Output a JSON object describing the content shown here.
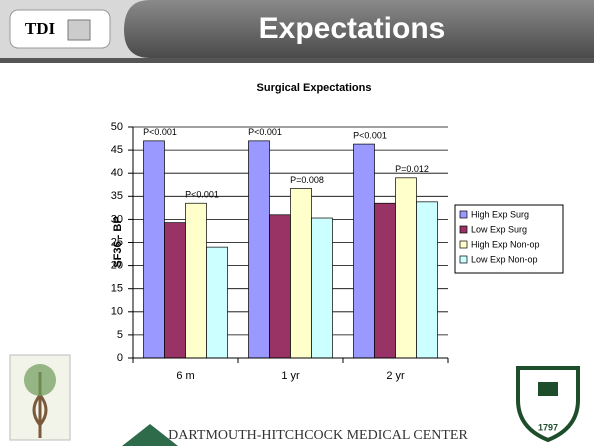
{
  "header": {
    "logo": "TDI",
    "title": "Expectations"
  },
  "footer": {
    "text": "DARTMOUTH-HITCHCOCK MEDICAL CENTER",
    "seal_year": "1797"
  },
  "chart_data": {
    "type": "bar",
    "title": "Surgical  Expectations",
    "y_label": "SF36 - BP",
    "categories": [
      "6 m",
      "1 yr",
      "2 yr"
    ],
    "series": [
      {
        "name": "High Exp Surg",
        "color": "#9999ff",
        "values": [
          47,
          47,
          46.3
        ]
      },
      {
        "name": "Low Exp Surg",
        "color": "#993366",
        "values": [
          29.3,
          31,
          33.5
        ]
      },
      {
        "name": "High Exp Non-op",
        "color": "#ffffcc",
        "values": [
          33.5,
          36.7,
          39
        ]
      },
      {
        "name": "Low Exp Non-op",
        "color": "#ccffff",
        "values": [
          24,
          30.3,
          33.8
        ]
      }
    ],
    "annotations": [
      {
        "text": "P<0.001",
        "category": "6 m",
        "series": "High Exp Surg"
      },
      {
        "text": "P<0.001",
        "category": "6 m",
        "series": "High Exp Non-op"
      },
      {
        "text": "P<0.001",
        "category": "1 yr",
        "series": "High Exp Surg"
      },
      {
        "text": "P=0.008",
        "category": "1 yr",
        "series": "High Exp Non-op"
      },
      {
        "text": "P<0.001",
        "category": "2 yr",
        "series": "High Exp Surg"
      },
      {
        "text": "P=0.012",
        "category": "2 yr",
        "series": "High Exp Non-op"
      }
    ],
    "ylim": [
      0,
      50
    ],
    "yticks": [
      0,
      5,
      10,
      15,
      20,
      25,
      30,
      35,
      40,
      45,
      50
    ],
    "grid": true,
    "legend": "right"
  }
}
